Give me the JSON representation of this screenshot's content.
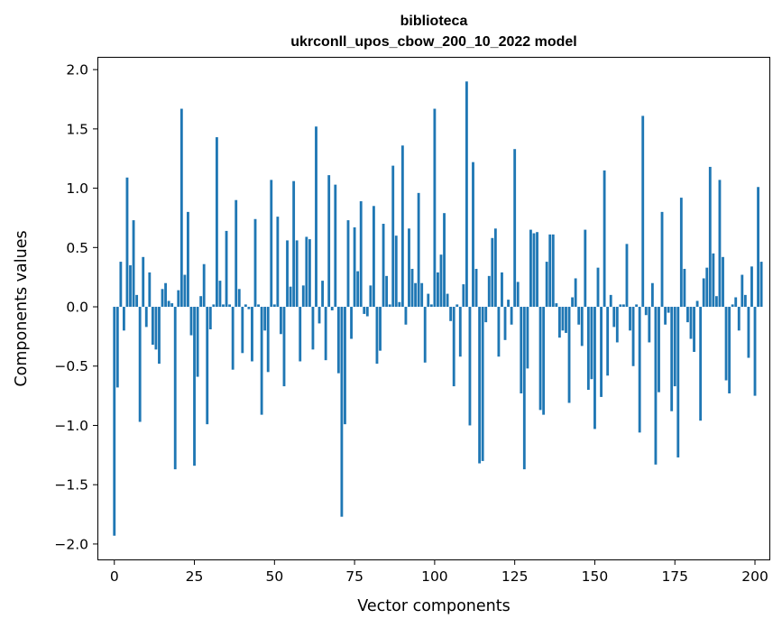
{
  "chart_data": {
    "type": "bar",
    "title_line1": "biblioteca",
    "title_line2": "ukrconll_upos_cbow_200_10_2022 model",
    "xlabel": "Vector components",
    "ylabel": "Components values",
    "xlim": [
      -5,
      204.5
    ],
    "ylim": [
      -2.13,
      2.1
    ],
    "xticks": [
      0,
      25,
      50,
      75,
      100,
      125,
      150,
      175,
      200
    ],
    "xtick_labels": [
      "0",
      "25",
      "50",
      "75",
      "100",
      "125",
      "150",
      "175",
      "200"
    ],
    "yticks": [
      2.0,
      1.5,
      1.0,
      0.5,
      0.0,
      -0.5,
      -1.0,
      -1.5,
      -2.0
    ],
    "ytick_labels": [
      "2.0",
      "1.5",
      "1.0",
      "0.5",
      "0.0",
      "−0.5",
      "−1.0",
      "−1.5",
      "−2.0"
    ],
    "bar_color": "#1f77b4",
    "grid": false,
    "values": [
      -1.93,
      -0.68,
      0.38,
      -0.2,
      1.09,
      0.35,
      0.73,
      0.1,
      -0.97,
      0.42,
      -0.17,
      0.29,
      -0.32,
      -0.36,
      -0.48,
      0.15,
      0.2,
      0.05,
      0.03,
      -1.37,
      0.14,
      1.67,
      0.27,
      0.8,
      -0.24,
      -1.34,
      -0.59,
      0.09,
      0.36,
      -0.99,
      -0.19,
      0.02,
      1.43,
      0.22,
      0.02,
      0.64,
      0.02,
      -0.53,
      0.9,
      0.15,
      -0.39,
      0.02,
      -0.02,
      -0.46,
      0.74,
      0.02,
      -0.91,
      -0.2,
      -0.55,
      1.07,
      0.02,
      0.76,
      -0.23,
      -0.67,
      0.56,
      0.17,
      1.06,
      0.56,
      -0.46,
      0.18,
      0.59,
      0.57,
      -0.36,
      1.52,
      -0.14,
      0.22,
      -0.45,
      1.11,
      -0.03,
      1.03,
      -0.56,
      -1.77,
      -0.99,
      0.73,
      -0.27,
      0.67,
      0.3,
      0.89,
      -0.06,
      -0.08,
      0.18,
      0.85,
      -0.48,
      -0.37,
      0.7,
      0.26,
      0.02,
      1.19,
      0.6,
      0.04,
      1.36,
      -0.15,
      0.66,
      0.32,
      0.2,
      0.96,
      0.2,
      -0.47,
      0.11,
      0.02,
      1.67,
      0.29,
      0.44,
      0.79,
      0.11,
      -0.12,
      -0.67,
      0.02,
      -0.42,
      0.19,
      1.9,
      -1.0,
      1.22,
      0.32,
      -1.32,
      -1.3,
      -0.13,
      0.26,
      0.58,
      0.66,
      -0.42,
      0.29,
      -0.28,
      0.06,
      -0.15,
      1.33,
      0.21,
      -0.73,
      -1.37,
      -0.52,
      0.65,
      0.62,
      0.63,
      -0.87,
      -0.91,
      0.38,
      0.61,
      0.61,
      0.03,
      -0.26,
      -0.2,
      -0.22,
      -0.81,
      0.08,
      0.24,
      -0.15,
      -0.33,
      0.65,
      -0.7,
      -0.61,
      -1.03,
      0.33,
      -0.76,
      1.15,
      -0.58,
      0.1,
      -0.17,
      -0.3,
      0.02,
      0.02,
      0.53,
      -0.2,
      -0.5,
      0.02,
      -1.06,
      1.61,
      -0.07,
      -0.3,
      0.2,
      -1.33,
      -0.72,
      0.8,
      -0.15,
      -0.05,
      -0.88,
      -0.67,
      -1.27,
      0.92,
      0.32,
      -0.13,
      -0.27,
      -0.38,
      0.05,
      -0.96,
      0.24,
      0.33,
      1.18,
      0.45,
      0.09,
      1.07,
      0.42,
      -0.62,
      -0.73,
      0.02,
      0.08,
      -0.2,
      0.27,
      0.1,
      -0.43,
      0.34,
      -0.75,
      1.01,
      0.38
    ]
  }
}
